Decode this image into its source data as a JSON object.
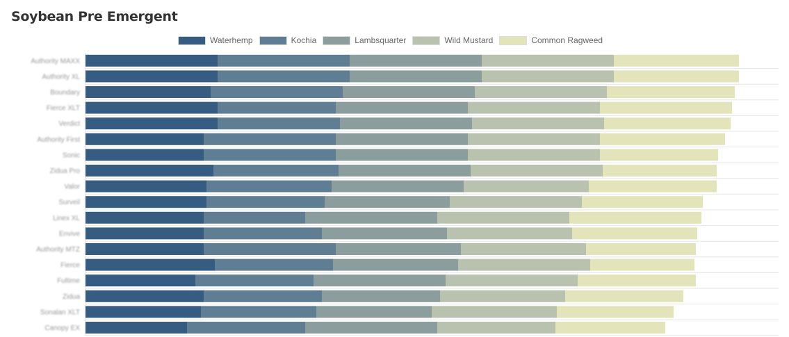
{
  "title": "Soybean Pre Emergent",
  "chart_data": {
    "type": "bar",
    "orientation": "horizontal",
    "stacked": true,
    "legend_position": "top",
    "grid": true,
    "categories": [
      "Authority MAXX",
      "Authority XL",
      "Boundary",
      "Fierce XLT",
      "Verdict",
      "Authority First",
      "Sonic",
      "Zidua Pro",
      "Valor",
      "Surveil",
      "Linex XL",
      "Envive",
      "Authority MTZ",
      "Fierce",
      "Fultime",
      "Zidua",
      "Sonalan XLT",
      "Canopy EX"
    ],
    "series": [
      {
        "name": "Waterhemp",
        "color": "#365c82",
        "values": [
          9.5,
          9.5,
          9,
          9.5,
          9.5,
          8.5,
          8.5,
          9.2,
          8.7,
          8.7,
          8.5,
          8.5,
          8.5,
          9.3,
          7.9,
          8.5,
          8.3,
          7.3
        ]
      },
      {
        "name": "Kochia",
        "color": "#5f7d93",
        "values": [
          9.5,
          9.5,
          9.5,
          8.5,
          8.8,
          9.5,
          9.5,
          9,
          9,
          8.5,
          7.3,
          8.5,
          9.5,
          8.5,
          8.5,
          8.5,
          8.3,
          8.5
        ]
      },
      {
        "name": "Lambsquarter",
        "color": "#8b9e9d",
        "values": [
          9.5,
          9.5,
          9.5,
          9.5,
          9.5,
          9.5,
          9.5,
          9.5,
          9.5,
          9,
          9.5,
          9,
          9,
          9,
          9.5,
          8.5,
          8.3,
          9.5
        ]
      },
      {
        "name": "Wild Mustard",
        "color": "#b9c2af",
        "values": [
          9.5,
          9.5,
          9.5,
          9.5,
          9.5,
          9.5,
          9.5,
          9.5,
          9,
          9.5,
          9.5,
          9,
          9,
          9.5,
          9.5,
          9,
          9,
          8.5
        ]
      },
      {
        "name": "Common Ragweed",
        "color": "#e4e4bb",
        "values": [
          9,
          9,
          9.2,
          9.5,
          9.1,
          9,
          8.5,
          8.2,
          9.2,
          8.7,
          9.5,
          9,
          7.9,
          7.5,
          8.5,
          8.5,
          8.4,
          7.9
        ]
      }
    ]
  }
}
